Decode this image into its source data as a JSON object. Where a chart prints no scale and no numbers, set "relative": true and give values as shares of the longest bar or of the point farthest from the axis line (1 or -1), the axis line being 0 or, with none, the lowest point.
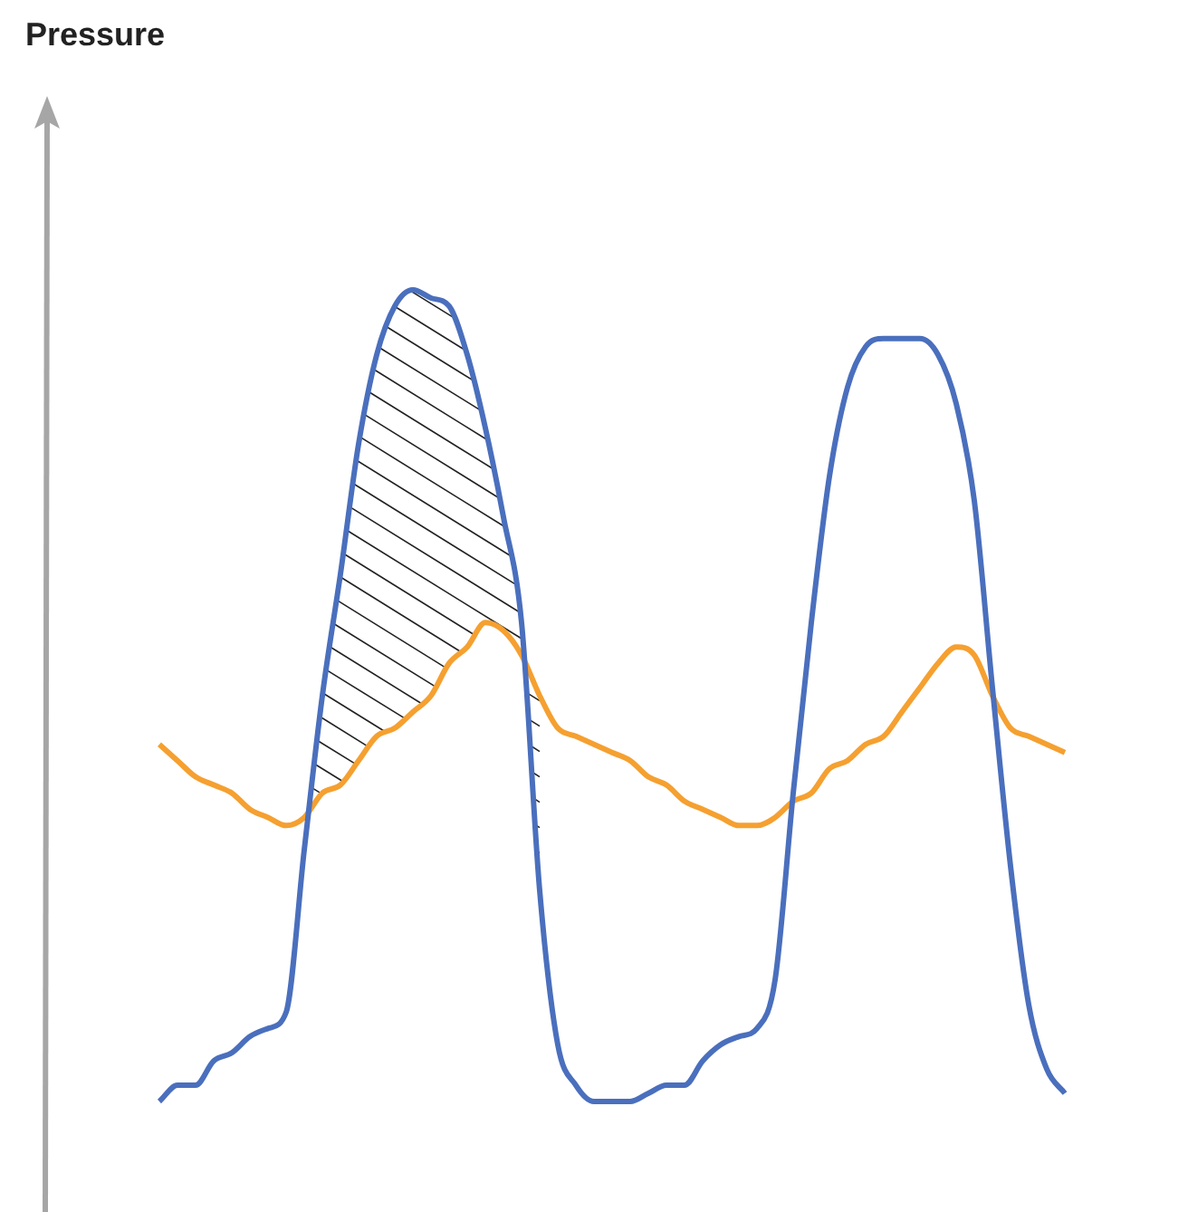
{
  "chart_data": {
    "type": "line",
    "annotations": [
      "Pressure"
    ],
    "relative": true,
    "legend": false,
    "marker": "none",
    "line_style": "solid",
    "categories": [
      null,
      null,
      null,
      null,
      null,
      null,
      null,
      null,
      null,
      null,
      null,
      null,
      null,
      null,
      null,
      null,
      null,
      null,
      null,
      null,
      null,
      null,
      null,
      null,
      null,
      null,
      null,
      null,
      null,
      null,
      null,
      null,
      null,
      null,
      null,
      null,
      null,
      null,
      null,
      null,
      null,
      null,
      null,
      null,
      null,
      null,
      null,
      null,
      null,
      null,
      null
    ],
    "series": [
      {
        "color": "#4a6fbd",
        "values": [
          0,
          0.02,
          0.02,
          0.05,
          0.06,
          0.08,
          0.09,
          0.11,
          0.31,
          0.5,
          0.65,
          0.81,
          0.92,
          0.98,
          1,
          0.99,
          0.98,
          0.92,
          0.83,
          0.72,
          0.59,
          0.26,
          0.07,
          0.02,
          0,
          0,
          0,
          0.01,
          0.02,
          0.02,
          0.05,
          0.07,
          0.08,
          0.09,
          0.15,
          0.38,
          0.59,
          0.77,
          0.88,
          0.93,
          0.94,
          0.94,
          0.94,
          0.92,
          0.86,
          0.74,
          0.51,
          0.29,
          0.12,
          0.04,
          0.01
        ]
      },
      {
        "color": "#f5a030",
        "values": [
          0.44,
          0.42,
          0.4,
          0.39,
          0.38,
          0.36,
          0.35,
          0.34,
          0.35,
          0.38,
          0.39,
          0.42,
          0.45,
          0.46,
          0.48,
          0.5,
          0.54,
          0.56,
          0.59,
          0.58,
          0.55,
          0.5,
          0.46,
          0.45,
          0.44,
          0.43,
          0.42,
          0.4,
          0.39,
          0.37,
          0.36,
          0.35,
          0.34,
          0.34,
          0.35,
          0.37,
          0.38,
          0.41,
          0.42,
          0.44,
          0.45,
          0.48,
          0.51,
          0.54,
          0.56,
          0.55,
          0.5,
          0.46,
          0.45,
          0.44,
          0.43
        ]
      }
    ]
  }
}
